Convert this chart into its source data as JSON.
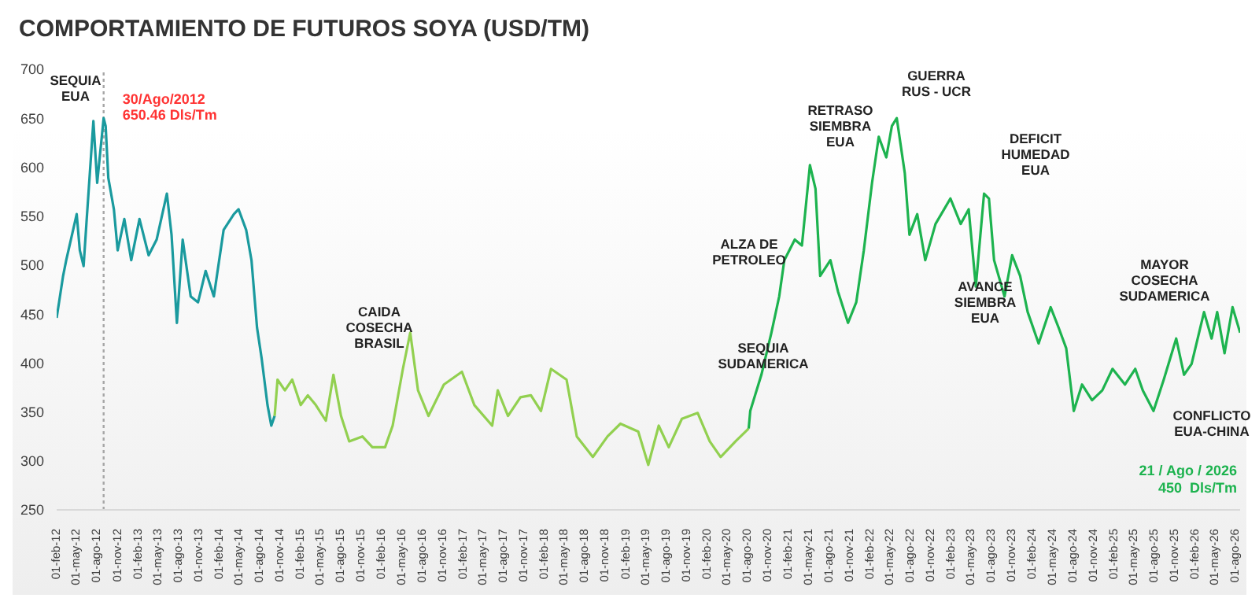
{
  "chart_data": {
    "type": "line",
    "title": "COMPORTAMIENTO  DE FUTUROS SOYA (USD/TM)",
    "xlim": [
      "2012-02-01",
      "2026-08-21"
    ],
    "xticks": [
      {
        "value": "2012-02",
        "label": "01-feb-12"
      },
      {
        "value": "2012-05",
        "label": "01-may-12"
      },
      {
        "value": "2012-08",
        "label": "01-ago-12"
      },
      {
        "value": "2012-11",
        "label": "01-nov-12"
      },
      {
        "value": "2013-02",
        "label": "01-feb-13"
      },
      {
        "value": "2013-05",
        "label": "01-may-13"
      },
      {
        "value": "2013-08",
        "label": "01-ago-13"
      },
      {
        "value": "2013-11",
        "label": "01-nov-13"
      },
      {
        "value": "2014-02",
        "label": "01-feb-14"
      },
      {
        "value": "2014-05",
        "label": "01-may-14"
      },
      {
        "value": "2014-08",
        "label": "01-ago-14"
      },
      {
        "value": "2014-11",
        "label": "01-nov-14"
      },
      {
        "value": "2015-02",
        "label": "01-feb-15"
      },
      {
        "value": "2015-05",
        "label": "01-may-15"
      },
      {
        "value": "2015-08",
        "label": "01-ago-15"
      },
      {
        "value": "2015-11",
        "label": "01-nov-15"
      },
      {
        "value": "2016-02",
        "label": "01-feb-16"
      },
      {
        "value": "2016-05",
        "label": "01-may-16"
      },
      {
        "value": "2016-08",
        "label": "01-ago-16"
      },
      {
        "value": "2016-11",
        "label": "01-nov-16"
      },
      {
        "value": "2017-02",
        "label": "01-feb-17"
      },
      {
        "value": "2017-05",
        "label": "01-may-17"
      },
      {
        "value": "2017-08",
        "label": "01-ago-17"
      },
      {
        "value": "2017-11",
        "label": "01-nov-17"
      },
      {
        "value": "2018-02",
        "label": "01-feb-18"
      },
      {
        "value": "2018-05",
        "label": "01-may-18"
      },
      {
        "value": "2018-08",
        "label": "01-ago-18"
      },
      {
        "value": "2018-11",
        "label": "01-nov-18"
      },
      {
        "value": "2019-02",
        "label": "01-feb-19"
      },
      {
        "value": "2019-05",
        "label": "01-may-19"
      },
      {
        "value": "2019-08",
        "label": "01-ago-19"
      },
      {
        "value": "2019-11",
        "label": "01-nov-19"
      },
      {
        "value": "2020-02",
        "label": "01-feb-20"
      },
      {
        "value": "2020-05",
        "label": "01-may-20"
      },
      {
        "value": "2020-08",
        "label": "01-ago-20"
      },
      {
        "value": "2020-11",
        "label": "01-nov-20"
      },
      {
        "value": "2021-02",
        "label": "01-feb-21"
      },
      {
        "value": "2021-05",
        "label": "01-may-21"
      },
      {
        "value": "2021-08",
        "label": "01-ago-21"
      },
      {
        "value": "2021-11",
        "label": "01-nov-21"
      },
      {
        "value": "2022-02",
        "label": "01-feb-22"
      },
      {
        "value": "2022-05",
        "label": "01-may-22"
      },
      {
        "value": "2022-08",
        "label": "01-ago-22"
      },
      {
        "value": "2022-11",
        "label": "01-nov-22"
      },
      {
        "value": "2023-02",
        "label": "01-feb-23"
      },
      {
        "value": "2023-05",
        "label": "01-may-23"
      },
      {
        "value": "2023-08",
        "label": "01-ago-23"
      },
      {
        "value": "2023-11",
        "label": "01-nov-23"
      },
      {
        "value": "2024-02",
        "label": "01-feb-24"
      },
      {
        "value": "2024-05",
        "label": "01-may-24"
      },
      {
        "value": "2024-08",
        "label": "01-ago-24"
      },
      {
        "value": "2024-11",
        "label": "01-nov-24"
      },
      {
        "value": "2025-02",
        "label": "01-feb-25"
      },
      {
        "value": "2025-05",
        "label": "01-may-25"
      },
      {
        "value": "2025-08",
        "label": "01-ago-25"
      },
      {
        "value": "2025-11",
        "label": "01-nov-25"
      },
      {
        "value": "2026-02",
        "label": "01-feb-26"
      },
      {
        "value": "2026-05",
        "label": "01-may-26"
      },
      {
        "value": "2026-08",
        "label": "01-ago-26"
      }
    ],
    "ylim": [
      250,
      700
    ],
    "yticks": [
      250,
      300,
      350,
      400,
      450,
      500,
      550,
      600,
      650,
      700
    ],
    "grid": false,
    "series": [
      {
        "color": "#1a9a9e",
        "x": [
          "2012-02-01",
          "2012-03-01",
          "2012-03-15",
          "2012-04-15",
          "2012-05-01",
          "2012-05-15",
          "2012-06-01",
          "2012-06-15",
          "2012-07-15",
          "2012-08-01",
          "2012-08-30",
          "2012-09-08",
          "2012-09-20",
          "2012-10-15",
          "2012-11-01",
          "2012-12-01",
          "2013-01-01",
          "2013-02-07",
          "2013-03-20",
          "2013-04-25",
          "2013-06-10",
          "2013-07-01",
          "2013-07-25",
          "2013-08-20",
          "2013-09-25",
          "2013-10-28",
          "2013-12-01",
          "2014-01-07",
          "2014-02-20",
          "2014-04-07",
          "2014-04-28",
          "2014-06-01",
          "2014-06-25",
          "2014-07-20",
          "2014-08-10",
          "2014-09-05",
          "2014-09-22",
          "2014-10-07"
        ],
        "values": [
          446,
          489,
          505,
          536,
          552,
          515,
          499,
          547,
          647,
          584,
          650,
          642,
          589,
          557,
          515,
          547,
          505,
          547,
          510,
          526,
          573,
          531,
          441,
          526,
          468,
          462,
          494,
          468,
          536,
          552,
          557,
          536,
          505,
          436,
          404,
          357,
          336,
          346
        ]
      },
      {
        "color": "#92d050",
        "x": [
          "2014-10-07",
          "2014-10-20",
          "2014-11-22",
          "2014-12-25",
          "2015-02-01",
          "2015-03-05",
          "2015-04-10",
          "2015-05-25",
          "2015-06-28",
          "2015-08-01",
          "2015-09-07",
          "2015-11-05",
          "2015-12-20",
          "2016-02-15",
          "2016-03-20",
          "2016-05-05",
          "2016-06-07",
          "2016-07-12",
          "2016-08-28",
          "2016-11-05",
          "2017-01-25",
          "2017-03-22",
          "2017-06-10",
          "2017-07-05",
          "2017-08-20",
          "2017-10-15",
          "2017-12-01",
          "2018-01-15",
          "2018-03-01",
          "2018-05-10",
          "2018-06-25",
          "2018-09-05",
          "2018-11-10",
          "2019-01-07",
          "2019-03-28",
          "2019-05-12",
          "2019-06-28",
          "2019-08-12",
          "2019-10-10",
          "2019-12-20",
          "2020-02-12",
          "2020-04-01",
          "2020-06-07",
          "2020-08-05"
        ],
        "values": [
          346,
          383,
          372,
          383,
          357,
          367,
          357,
          341,
          388,
          346,
          320,
          325,
          314,
          314,
          336,
          394,
          431,
          372,
          346,
          378,
          391,
          357,
          336,
          372,
          346,
          365,
          367,
          351,
          394,
          383,
          325,
          304,
          325,
          338,
          330,
          296,
          336,
          314,
          343,
          349,
          320,
          304,
          320,
          333
        ]
      },
      {
        "color": "#1db34f",
        "x": [
          "2020-08-05",
          "2020-08-12",
          "2020-10-01",
          "2020-11-15",
          "2020-12-20",
          "2021-01-12",
          "2021-02-28",
          "2021-04-01",
          "2021-05-07",
          "2021-06-01",
          "2021-06-22",
          "2021-08-07",
          "2021-09-10",
          "2021-10-25",
          "2021-12-01",
          "2022-01-04",
          "2022-02-10",
          "2022-03-12",
          "2022-04-15",
          "2022-05-10",
          "2022-06-01",
          "2022-07-07",
          "2022-07-28",
          "2022-09-01",
          "2022-10-07",
          "2022-11-22",
          "2023-01-28",
          "2023-03-15",
          "2023-04-20",
          "2023-05-22",
          "2023-06-28",
          "2023-07-20",
          "2023-08-12",
          "2023-09-28",
          "2023-11-01",
          "2023-12-07",
          "2024-01-10",
          "2024-02-28",
          "2024-04-22",
          "2024-05-28",
          "2024-07-01",
          "2024-08-04",
          "2024-09-10",
          "2024-10-25",
          "2024-12-10",
          "2025-01-25",
          "2025-03-22",
          "2025-05-07",
          "2025-06-10",
          "2025-07-28",
          "2025-09-12",
          "2025-11-07",
          "2025-12-12",
          "2026-01-15",
          "2026-03-12",
          "2026-04-15",
          "2026-05-10",
          "2026-06-12",
          "2026-07-18",
          "2026-08-21"
        ],
        "values": [
          333,
          351,
          388,
          431,
          468,
          505,
          526,
          520,
          602,
          578,
          489,
          505,
          473,
          441,
          462,
          515,
          584,
          631,
          610,
          642,
          650,
          594,
          531,
          552,
          505,
          542,
          568,
          542,
          557,
          478,
          573,
          568,
          505,
          468,
          510,
          489,
          452,
          420,
          457,
          436,
          415,
          351,
          378,
          362,
          372,
          394,
          378,
          394,
          372,
          351,
          383,
          425,
          388,
          399,
          452,
          425,
          452,
          410,
          457,
          431
        ]
      }
    ],
    "ref_lines": [
      {
        "axis": "x",
        "value": "2012-08-30",
        "label": "30/Ago/2012\n650.46 Dls/Tm",
        "color": "#a6a6a6",
        "line_style": "dotted"
      }
    ],
    "annotations": [
      "SEQUIA\nEUA",
      "CAIDA\nCOSECHA\nBRASIL",
      "SEQUIA\nSUDAMERICA",
      "ALZA DE\nPETROLEO",
      "RETRASO\nSIEMBRA\nEUA",
      "GUERRA\nRUS - UCR",
      "DEFICIT\nHUMEDAD\nEUA",
      "AVANCE\nSIEMBRA\nEUA",
      "MAYOR\nCOSECHA\nSUDAMERICA",
      "CONFLICTO\nEUA-CHINA",
      "21 / Ago / 2026\n450  Dls/Tm"
    ]
  }
}
